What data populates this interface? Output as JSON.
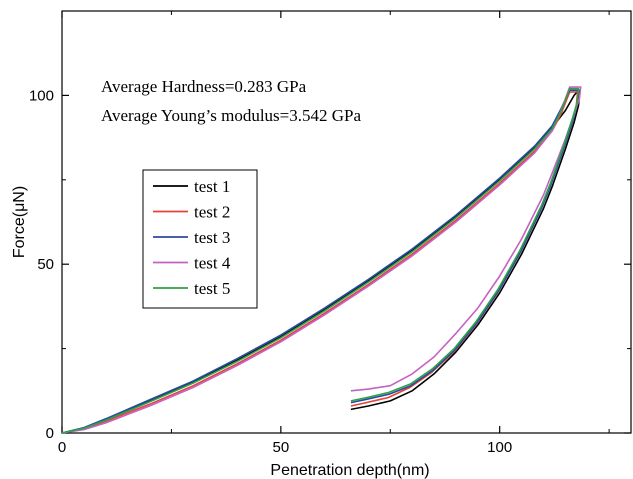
{
  "chart_data": {
    "type": "line",
    "title": "",
    "xlabel": "Penetration depth(nm)",
    "ylabel": "Force(μN)",
    "xlim": [
      0,
      130
    ],
    "ylim": [
      0,
      125
    ],
    "x_ticks": [
      0,
      50,
      100
    ],
    "y_ticks": [
      0,
      50,
      100
    ],
    "grid": false,
    "legend_position": "center-left",
    "annotations": [
      "Average Hardness=0.283 GPa",
      "Average Young’s modulus=3.542 GPa"
    ],
    "series": [
      {
        "name": "test 1",
        "color": "#000000",
        "x": [
          0,
          5,
          10,
          20,
          30,
          40,
          50,
          60,
          70,
          80,
          90,
          100,
          108,
          112,
          115,
          117,
          118,
          118.3,
          118,
          117,
          115,
          112,
          110,
          105,
          100,
          95,
          90,
          85,
          80,
          75,
          70,
          66
        ],
        "y": [
          0,
          1.5,
          4,
          9.5,
          15,
          21.5,
          28.5,
          36.5,
          45,
          54,
          64,
          75,
          84.5,
          90.5,
          95.5,
          100,
          101.5,
          101.5,
          97,
          92,
          84,
          73,
          66.5,
          53,
          41.5,
          32,
          24,
          17.5,
          12.5,
          9.5,
          8,
          7
        ]
      },
      {
        "name": "test 2",
        "color": "#e8413a",
        "x": [
          0,
          5,
          10,
          20,
          30,
          40,
          50,
          60,
          70,
          80,
          90,
          100,
          108,
          112,
          114,
          116,
          117.8,
          117.5,
          116.5,
          114.5,
          111.5,
          109.5,
          104.5,
          99.5,
          94.5,
          89.5,
          84.5,
          79.5,
          74.5,
          69.5,
          66
        ],
        "y": [
          0,
          1.2,
          3.5,
          8.5,
          14,
          20.5,
          27.5,
          35.5,
          44,
          53,
          63,
          74,
          83.5,
          89.5,
          94.5,
          101,
          101,
          97,
          92,
          84,
          73,
          66.5,
          53,
          41.5,
          32,
          24,
          18,
          13.5,
          10.5,
          9,
          8
        ]
      },
      {
        "name": "test 3",
        "color": "#2b4aa0",
        "x": [
          0,
          5,
          10,
          20,
          30,
          40,
          50,
          60,
          70,
          80,
          90,
          100,
          108,
          112,
          114,
          116,
          118,
          117.7,
          116.7,
          114.7,
          111.7,
          109.7,
          104.7,
          99.7,
          94.7,
          89.7,
          84.7,
          79.7,
          74.7,
          69.7,
          66
        ],
        "y": [
          0,
          1.6,
          4.2,
          9.8,
          15.4,
          22,
          29,
          37,
          45.5,
          54.5,
          64.5,
          75.5,
          85,
          91,
          96,
          101.5,
          101.5,
          97.5,
          92.5,
          84.5,
          73.5,
          67,
          53.5,
          42,
          32.5,
          24.5,
          18.5,
          14,
          11.5,
          10,
          9
        ]
      },
      {
        "name": "test 4",
        "color": "#c561c4",
        "x": [
          0,
          5,
          10,
          20,
          30,
          40,
          50,
          60,
          70,
          80,
          90,
          100,
          108,
          112,
          114,
          116,
          118.5,
          118.2,
          117,
          115,
          112,
          110,
          105,
          100,
          95,
          90,
          85,
          80,
          75,
          70,
          66
        ],
        "y": [
          0,
          1,
          3,
          8,
          13.5,
          20,
          27,
          35,
          43.5,
          52.5,
          62.5,
          73.5,
          83,
          89.5,
          95.5,
          102.5,
          102.5,
          99,
          94.5,
          87,
          77,
          70.5,
          57.5,
          46.5,
          37,
          29.5,
          22.5,
          17.5,
          14,
          13,
          12.5
        ]
      },
      {
        "name": "test 5",
        "color": "#2aa346",
        "x": [
          0,
          5,
          10,
          20,
          30,
          40,
          50,
          60,
          70,
          80,
          90,
          100,
          108,
          112,
          114,
          116,
          118,
          117.7,
          116.6,
          114.6,
          111.6,
          109.6,
          104.6,
          99.6,
          94.6,
          89.6,
          84.6,
          79.6,
          74.6,
          69.6,
          66
        ],
        "y": [
          0,
          1.4,
          3.8,
          9.2,
          14.8,
          21.2,
          28.2,
          36.2,
          44.7,
          53.7,
          63.7,
          74.7,
          84.2,
          90.2,
          95.2,
          102,
          102,
          98,
          93,
          85,
          74,
          67.5,
          54,
          42.5,
          33,
          25,
          19,
          14.5,
          12,
          10.5,
          9.5
        ]
      }
    ]
  }
}
